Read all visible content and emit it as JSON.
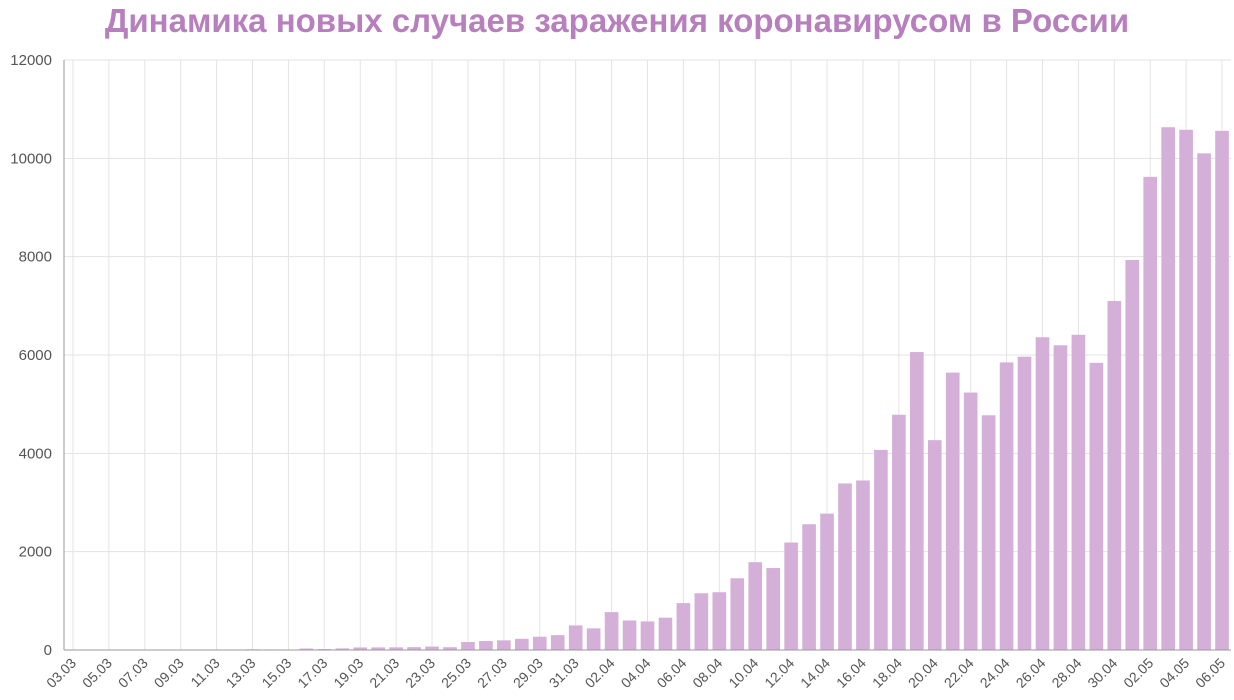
{
  "chart_data": {
    "type": "bar",
    "title": "Динамика новых случаев заражения коронавирусом в России",
    "xlabel": "",
    "ylabel": "",
    "ylim": [
      0,
      12000
    ],
    "yticks": [
      0,
      2000,
      4000,
      6000,
      8000,
      10000,
      12000
    ],
    "grid": true,
    "bar_color": "#d4b0d9",
    "title_color": "#b77fbd",
    "categories": [
      "03.03",
      "04.03",
      "05.03",
      "06.03",
      "07.03",
      "08.03",
      "09.03",
      "10.03",
      "11.03",
      "12.03",
      "13.03",
      "14.03",
      "15.03",
      "16.03",
      "17.03",
      "18.03",
      "19.03",
      "20.03",
      "21.03",
      "22.03",
      "23.03",
      "24.03",
      "25.03",
      "26.03",
      "27.03",
      "28.03",
      "29.03",
      "30.03",
      "31.03",
      "01.04",
      "02.04",
      "03.04",
      "04.04",
      "05.04",
      "06.04",
      "07.04",
      "08.04",
      "09.04",
      "10.04",
      "11.04",
      "12.04",
      "13.04",
      "14.04",
      "15.04",
      "16.04",
      "17.04",
      "18.04",
      "19.04",
      "20.04",
      "21.04",
      "22.04",
      "23.04",
      "24.04",
      "25.04",
      "26.04",
      "27.04",
      "28.04",
      "29.04",
      "30.04",
      "01.05",
      "02.05",
      "03.05",
      "04.05",
      "05.05",
      "06.05"
    ],
    "tick_labels": [
      "03.03",
      "05.03",
      "07.03",
      "09.03",
      "11.03",
      "13.03",
      "15.03",
      "17.03",
      "19.03",
      "21.03",
      "23.03",
      "25.03",
      "27.03",
      "29.03",
      "31.03",
      "02.04",
      "04.04",
      "06.04",
      "08.04",
      "10.04",
      "12.04",
      "14.04",
      "16.04",
      "18.04",
      "20.04",
      "22.04",
      "24.04",
      "26.04",
      "28.04",
      "30.04",
      "02.05",
      "04.05",
      "06.05"
    ],
    "values": [
      1,
      0,
      2,
      0,
      1,
      3,
      0,
      3,
      8,
      6,
      14,
      11,
      4,
      30,
      20,
      33,
      52,
      53,
      54,
      58,
      71,
      57,
      163,
      182,
      196,
      228,
      270,
      302,
      500,
      440,
      771,
      601,
      582,
      658,
      954,
      1154,
      1175,
      1459,
      1786,
      1667,
      2186,
      2558,
      2774,
      3388,
      3448,
      4070,
      4785,
      6060,
      4268,
      5642,
      5236,
      4774,
      5849,
      5966,
      6361,
      6198,
      6411,
      5841,
      7099,
      7933,
      9623,
      10633,
      10581,
      10102,
      10559
    ]
  }
}
